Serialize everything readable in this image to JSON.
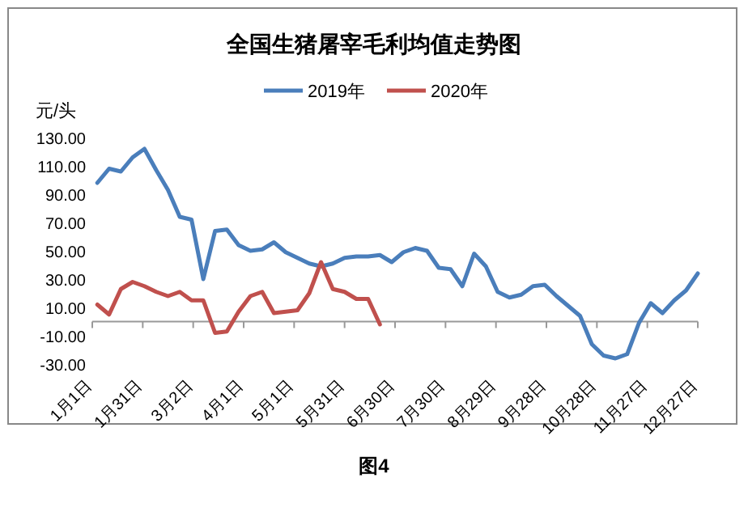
{
  "chart_data": {
    "type": "line",
    "title": "全国生猪屠宰毛利均值走势图",
    "ylabel": "元/头",
    "annotations": [
      "图4"
    ],
    "x": [
      "--01-04",
      "--01-11",
      "--01-18",
      "--01-25",
      "--02-01",
      "--02-08",
      "--02-15",
      "--02-22",
      "--03-01",
      "--03-08",
      "--03-15",
      "--03-22",
      "--03-29",
      "--04-05",
      "--04-12",
      "--04-19",
      "--04-26",
      "--05-03",
      "--05-10",
      "--05-17",
      "--05-24",
      "--05-31",
      "--06-07",
      "--06-14",
      "--06-21",
      "--06-28",
      "--07-05",
      "--07-12",
      "--07-19",
      "--07-26",
      "--08-02",
      "--08-09",
      "--08-16",
      "--08-23",
      "--08-30",
      "--09-06",
      "--09-13",
      "--09-20",
      "--09-27",
      "--10-04",
      "--10-11",
      "--10-18",
      "--10-25",
      "--11-01",
      "--11-08",
      "--11-15",
      "--11-22",
      "--11-29",
      "--12-06",
      "--12-13",
      "--12-20",
      "--12-27"
    ],
    "series": [
      {
        "name": "2019年",
        "color": "#4a7ebb",
        "values": [
          98,
          108,
          106,
          116,
          122,
          107,
          93,
          74,
          72,
          30,
          64,
          65,
          54,
          50,
          51,
          56,
          49,
          45,
          41,
          39,
          41,
          45,
          46,
          46,
          47,
          42,
          49,
          52,
          50,
          38,
          37,
          25,
          48,
          39,
          21,
          17,
          19,
          25,
          26,
          18,
          11,
          4,
          -16,
          -24,
          -26,
          -23,
          -1,
          13,
          6,
          15,
          22,
          34
        ]
      },
      {
        "name": "2020年",
        "color": "#c0504d",
        "values": [
          12,
          5,
          23,
          28,
          25,
          21,
          18,
          21,
          15,
          15,
          -8,
          -7,
          7,
          18,
          21,
          6,
          7,
          8,
          20,
          42,
          23,
          21,
          16,
          16,
          -2,
          null,
          null,
          null,
          null,
          null,
          null,
          null,
          null,
          null,
          null,
          null,
          null,
          null,
          null,
          null,
          null,
          null,
          null,
          null,
          null,
          null,
          null,
          null,
          null,
          null,
          null,
          null
        ]
      }
    ],
    "xlim": [
      "--01-01",
      "--12-27"
    ],
    "xticks": [
      {
        "value": "--01-01",
        "label": "1月1日"
      },
      {
        "value": "--01-31",
        "label": "1月31日"
      },
      {
        "value": "--03-02",
        "label": "3月2日"
      },
      {
        "value": "--04-01",
        "label": "4月1日"
      },
      {
        "value": "--05-01",
        "label": "5月1日"
      },
      {
        "value": "--05-31",
        "label": "5月31日"
      },
      {
        "value": "--06-30",
        "label": "6月30日"
      },
      {
        "value": "--07-30",
        "label": "7月30日"
      },
      {
        "value": "--08-29",
        "label": "8月29日"
      },
      {
        "value": "--09-28",
        "label": "9月28日"
      },
      {
        "value": "--10-28",
        "label": "10月28日"
      },
      {
        "value": "--11-27",
        "label": "11月27日"
      },
      {
        "value": "--12-27",
        "label": "12月27日"
      }
    ],
    "ylim": [
      -30,
      130
    ],
    "yticks": [
      {
        "value": 130,
        "label": "130.00"
      },
      {
        "value": 110,
        "label": "110.00"
      },
      {
        "value": 90,
        "label": "90.00"
      },
      {
        "value": 70,
        "label": "70.00"
      },
      {
        "value": 50,
        "label": "50.00"
      },
      {
        "value": 30,
        "label": "30.00"
      },
      {
        "value": 10,
        "label": "10.00"
      },
      {
        "value": -10,
        "label": "-10.00"
      },
      {
        "value": -30,
        "label": "-30.00"
      }
    ],
    "grid": false,
    "legend": "top",
    "marker": "none",
    "line_style": "solid"
  }
}
